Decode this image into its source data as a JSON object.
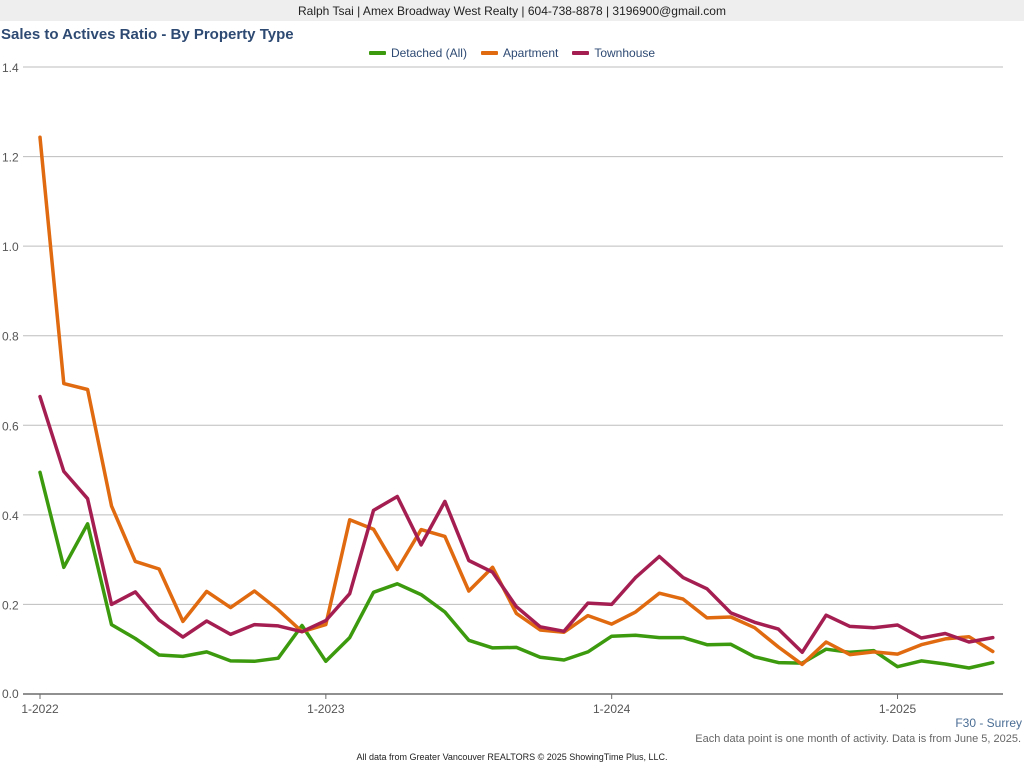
{
  "header": {
    "contact_line": "Ralph Tsai | Amex Broadway West Realty | 604-738-8878 | 3196900@gmail.com"
  },
  "footer": {
    "region": "F30 - Surrey",
    "note": "Each data point is one month of activity. Data is from June 5, 2025.",
    "source": "All data from Greater Vancouver REALTORS © 2025 ShowingTime Plus, LLC."
  },
  "chart_data": {
    "type": "line",
    "title": "Sales to Actives Ratio - By Property Type",
    "xlabel": "",
    "ylabel": "",
    "ylim": [
      0,
      1.4
    ],
    "yticks": [
      0.0,
      0.2,
      0.4,
      0.6,
      0.8,
      1.0,
      1.2,
      1.4
    ],
    "ytick_labels": [
      "0.0",
      "0.2",
      "0.4",
      "0.6",
      "0.8",
      "1.0",
      "1.2",
      "1.4"
    ],
    "xtick_labels": [
      "1-2022",
      "1-2023",
      "1-2024",
      "1-2025"
    ],
    "grid": true,
    "legend_position": "top-center",
    "x": [
      "1-2022",
      "2-2022",
      "3-2022",
      "4-2022",
      "5-2022",
      "6-2022",
      "7-2022",
      "8-2022",
      "9-2022",
      "10-2022",
      "11-2022",
      "12-2022",
      "1-2023",
      "2-2023",
      "3-2023",
      "4-2023",
      "5-2023",
      "6-2023",
      "7-2023",
      "8-2023",
      "9-2023",
      "10-2023",
      "11-2023",
      "12-2023",
      "1-2024",
      "2-2024",
      "3-2024",
      "4-2024",
      "5-2024",
      "6-2024",
      "7-2024",
      "8-2024",
      "9-2024",
      "10-2024",
      "11-2024",
      "12-2024",
      "1-2025",
      "2-2025",
      "3-2025",
      "4-2025",
      "5-2025"
    ],
    "series": [
      {
        "name": "Detached (All)",
        "color": "#3c9a0e",
        "values": [
          0.495,
          0.283,
          0.38,
          0.155,
          0.124,
          0.087,
          0.084,
          0.094,
          0.074,
          0.073,
          0.08,
          0.153,
          0.073,
          0.126,
          0.227,
          0.246,
          0.222,
          0.183,
          0.12,
          0.103,
          0.104,
          0.082,
          0.076,
          0.094,
          0.129,
          0.131,
          0.126,
          0.126,
          0.11,
          0.111,
          0.083,
          0.07,
          0.069,
          0.1,
          0.093,
          0.097,
          0.061,
          0.074,
          0.067,
          0.058,
          0.07
        ]
      },
      {
        "name": "Apartment",
        "color": "#e06a10",
        "values": [
          1.243,
          0.693,
          0.68,
          0.42,
          0.296,
          0.279,
          0.162,
          0.229,
          0.193,
          0.23,
          0.188,
          0.139,
          0.155,
          0.389,
          0.368,
          0.278,
          0.367,
          0.352,
          0.23,
          0.283,
          0.18,
          0.143,
          0.138,
          0.175,
          0.156,
          0.183,
          0.225,
          0.212,
          0.17,
          0.172,
          0.148,
          0.105,
          0.066,
          0.116,
          0.088,
          0.094,
          0.089,
          0.11,
          0.123,
          0.128,
          0.095
        ]
      },
      {
        "name": "Townhouse",
        "color": "#a51e52",
        "values": [
          0.664,
          0.497,
          0.436,
          0.2,
          0.228,
          0.165,
          0.127,
          0.163,
          0.133,
          0.155,
          0.152,
          0.139,
          0.164,
          0.224,
          0.41,
          0.441,
          0.333,
          0.43,
          0.298,
          0.272,
          0.195,
          0.15,
          0.14,
          0.203,
          0.2,
          0.26,
          0.307,
          0.26,
          0.235,
          0.181,
          0.16,
          0.145,
          0.093,
          0.176,
          0.151,
          0.148,
          0.154,
          0.125,
          0.135,
          0.116,
          0.126
        ]
      }
    ]
  }
}
